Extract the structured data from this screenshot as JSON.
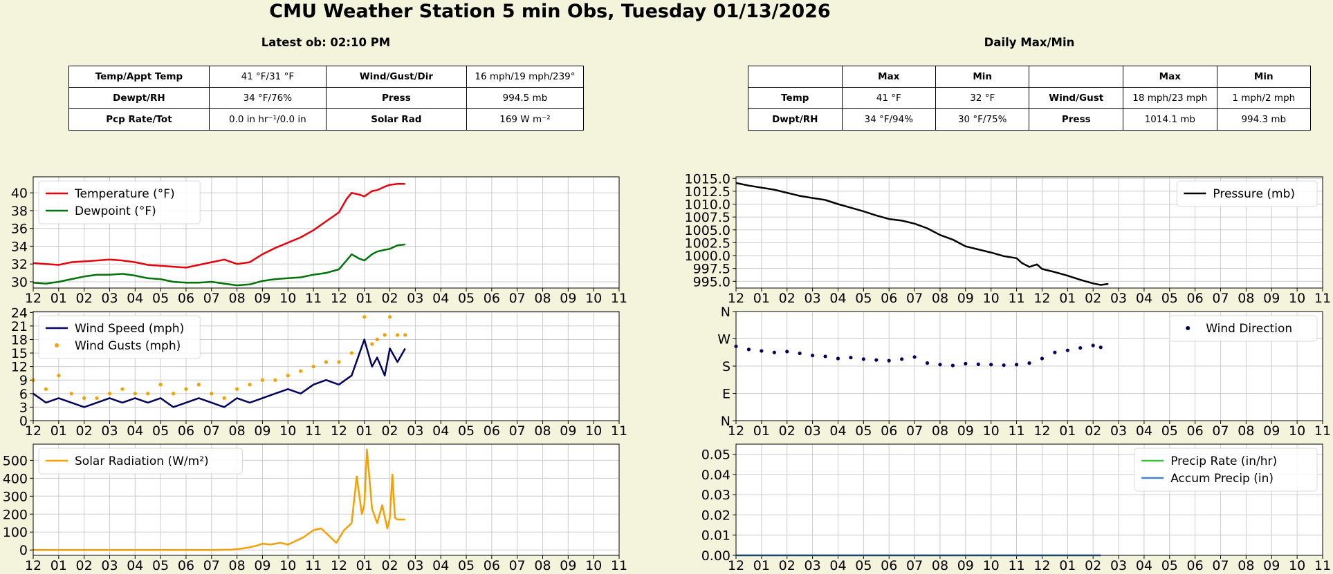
{
  "title": "CMU Weather Station 5 min Obs, Tuesday 01/13/2026",
  "latest": {
    "heading": "Latest ob: 02:10 PM",
    "rows": [
      [
        "Temp/Appt Temp",
        "41 °F/31 °F",
        "Wind/Gust/Dir",
        "16 mph/19 mph/239°"
      ],
      [
        "Dewpt/RH",
        "34 °F/76%",
        "Press",
        "994.5 mb"
      ],
      [
        "Pcp Rate/Tot",
        "0.0 in hr⁻¹/0.0 in",
        "Solar Rad",
        "169 W m⁻²"
      ]
    ]
  },
  "daily": {
    "heading": "Daily Max/Min",
    "header": [
      "",
      "Max",
      "Min",
      "",
      "Max",
      "Min"
    ],
    "rows": [
      [
        "Temp",
        "41 °F",
        "32 °F",
        "Wind/Gust",
        "18 mph/23 mph",
        "1 mph/2 mph"
      ],
      [
        "Dwpt/RH",
        "34 °F/94%",
        "30 °F/75%",
        "Press",
        "1014.1 mb",
        "994.3 mb"
      ]
    ]
  },
  "x_tick_labels": [
    "12",
    "01",
    "02",
    "03",
    "04",
    "05",
    "06",
    "07",
    "08",
    "09",
    "10",
    "11",
    "12",
    "01",
    "02",
    "03",
    "04",
    "05",
    "06",
    "07",
    "08",
    "09",
    "10",
    "11"
  ],
  "chart_data": [
    {
      "id": "temp",
      "type": "line",
      "x_unit": "hours since midnight",
      "xlim": [
        0,
        23
      ],
      "ylim": [
        29.3,
        41.8
      ],
      "yticks": [
        30,
        32,
        34,
        36,
        38,
        40
      ],
      "grid": true,
      "legend_placement": "top-left",
      "series": [
        {
          "name": "Temperature (°F)",
          "color": "#e8000b",
          "x": [
            0,
            0.5,
            1,
            1.5,
            2,
            2.5,
            3,
            3.5,
            4,
            4.5,
            5,
            5.5,
            6,
            6.5,
            7,
            7.5,
            8,
            8.5,
            9,
            9.5,
            10,
            10.5,
            11,
            11.5,
            12,
            12.3,
            12.5,
            12.8,
            13,
            13.3,
            13.5,
            13.8,
            14,
            14.3,
            14.6
          ],
          "y": [
            32.1,
            32.0,
            31.9,
            32.2,
            32.3,
            32.4,
            32.5,
            32.4,
            32.2,
            31.9,
            31.8,
            31.7,
            31.6,
            31.9,
            32.2,
            32.5,
            32.0,
            32.2,
            33.1,
            33.8,
            34.4,
            35.0,
            35.8,
            36.8,
            37.8,
            39.3,
            40.0,
            39.8,
            39.6,
            40.2,
            40.3,
            40.7,
            40.9,
            41.0,
            41.0
          ]
        },
        {
          "name": "Dewpoint (°F)",
          "color": "#00720a",
          "x": [
            0,
            0.5,
            1,
            1.5,
            2,
            2.5,
            3,
            3.5,
            4,
            4.5,
            5,
            5.5,
            6,
            6.5,
            7,
            7.5,
            8,
            8.5,
            9,
            9.5,
            10,
            10.5,
            11,
            11.5,
            12,
            12.3,
            12.5,
            12.8,
            13,
            13.3,
            13.5,
            13.8,
            14,
            14.3,
            14.6
          ],
          "y": [
            29.9,
            29.8,
            30.0,
            30.3,
            30.6,
            30.8,
            30.8,
            30.9,
            30.7,
            30.4,
            30.3,
            30.0,
            29.9,
            29.9,
            30.0,
            29.8,
            29.6,
            29.7,
            30.1,
            30.3,
            30.4,
            30.5,
            30.8,
            31.0,
            31.4,
            32.4,
            33.1,
            32.6,
            32.4,
            33.1,
            33.4,
            33.6,
            33.7,
            34.1,
            34.2
          ]
        }
      ]
    },
    {
      "id": "pressure",
      "type": "line",
      "x_unit": "hours since midnight",
      "xlim": [
        0,
        23
      ],
      "ylim": [
        993.7,
        1015.3
      ],
      "yticks": [
        "995.0",
        "997.5",
        "1000.0",
        "1002.5",
        "1005.0",
        "1007.5",
        "1010.0",
        "1012.5",
        "1015.0"
      ],
      "grid": true,
      "legend_placement": "top-right",
      "series": [
        {
          "name": "Pressure (mb)",
          "color": "#000000",
          "x": [
            0,
            0.5,
            1,
            1.5,
            2,
            2.5,
            3,
            3.5,
            4,
            4.5,
            5,
            5.5,
            6,
            6.5,
            7,
            7.5,
            8,
            8.5,
            9,
            9.5,
            10,
            10.5,
            11,
            11.2,
            11.5,
            11.8,
            12,
            12.5,
            13,
            13.5,
            14,
            14.3,
            14.6
          ],
          "y": [
            1014.1,
            1013.6,
            1013.2,
            1012.8,
            1012.2,
            1011.6,
            1011.2,
            1010.8,
            1010.0,
            1009.3,
            1008.6,
            1007.8,
            1007.1,
            1006.8,
            1006.2,
            1005.3,
            1004.0,
            1003.1,
            1001.8,
            1001.2,
            1000.6,
            999.9,
            999.5,
            998.6,
            997.8,
            998.3,
            997.4,
            996.8,
            996.1,
            995.3,
            994.6,
            994.3,
            994.5
          ]
        }
      ]
    },
    {
      "id": "wind",
      "type": "line",
      "x_unit": "hours since midnight",
      "xlim": [
        0,
        23
      ],
      "ylim": [
        0,
        24.2
      ],
      "yticks": [
        0,
        3,
        6,
        9,
        12,
        15,
        18,
        21,
        24
      ],
      "grid": true,
      "legend_placement": "top-left",
      "series": [
        {
          "name": "Wind Speed (mph)",
          "color": "#00005f",
          "x": [
            0,
            0.5,
            1,
            1.5,
            2,
            2.5,
            3,
            3.5,
            4,
            4.5,
            5,
            5.5,
            6,
            6.5,
            7,
            7.5,
            8,
            8.5,
            9,
            9.5,
            10,
            10.5,
            11,
            11.5,
            12,
            12.5,
            13,
            13.3,
            13.5,
            13.8,
            14,
            14.3,
            14.6
          ],
          "y": [
            6,
            4,
            5,
            4,
            3,
            4,
            5,
            4,
            5,
            4,
            5,
            3,
            4,
            5,
            4,
            3,
            5,
            4,
            5,
            6,
            7,
            6,
            8,
            9,
            8,
            10,
            18,
            12,
            14,
            10,
            16,
            13,
            16
          ]
        },
        {
          "name": "Wind Gusts (mph)",
          "color": "#f5a000",
          "marker": "dot",
          "x": [
            0,
            0.5,
            1,
            1.5,
            2,
            2.5,
            3,
            3.5,
            4,
            4.5,
            5,
            5.5,
            6,
            6.5,
            7,
            7.5,
            8,
            8.5,
            9,
            9.5,
            10,
            10.5,
            11,
            11.5,
            12,
            12.5,
            13,
            13.3,
            13.5,
            13.8,
            14,
            14.3,
            14.6
          ],
          "y": [
            9,
            7,
            10,
            6,
            5,
            5,
            6,
            7,
            6,
            6,
            8,
            6,
            7,
            8,
            6,
            5,
            7,
            8,
            9,
            9,
            10,
            11,
            12,
            13,
            13,
            15,
            23,
            17,
            18,
            19,
            23,
            19,
            19
          ]
        }
      ]
    },
    {
      "id": "winddir",
      "type": "scatter",
      "x_unit": "hours since midnight",
      "xlim": [
        0,
        23
      ],
      "ylim": [
        0,
        360
      ],
      "yticks": [
        0,
        90,
        180,
        270,
        360
      ],
      "ytick_labels": [
        "N",
        "E",
        "S",
        "W",
        "N"
      ],
      "grid": true,
      "legend_placement": "top-right",
      "series": [
        {
          "name": "Wind Direction",
          "color": "#00005f",
          "x": [
            0,
            0.5,
            1,
            1.5,
            2,
            2.5,
            3,
            3.5,
            4,
            4.5,
            5,
            5.5,
            6,
            6.5,
            7,
            7.5,
            8,
            8.5,
            9,
            9.5,
            10,
            10.5,
            11,
            11.5,
            12,
            12.5,
            13,
            13.5,
            14,
            14.3
          ],
          "y": [
            245,
            235,
            230,
            225,
            228,
            222,
            215,
            212,
            205,
            208,
            203,
            200,
            198,
            203,
            210,
            190,
            185,
            182,
            188,
            186,
            185,
            183,
            185,
            190,
            205,
            225,
            232,
            240,
            248,
            242
          ]
        }
      ]
    },
    {
      "id": "solar",
      "type": "line",
      "x_unit": "hours since midnight",
      "xlim": [
        0,
        23
      ],
      "ylim": [
        -30,
        590
      ],
      "yticks": [
        0,
        100,
        200,
        300,
        400,
        500
      ],
      "grid": true,
      "legend_placement": "top-left",
      "series": [
        {
          "name": "Solar Radiation (W/m²)",
          "color": "#f5a000",
          "x": [
            0,
            1,
            2,
            3,
            4,
            5,
            6,
            7,
            7.8,
            8.2,
            8.5,
            8.8,
            9,
            9.3,
            9.7,
            10,
            10.3,
            10.6,
            11,
            11.3,
            11.6,
            11.9,
            12.2,
            12.5,
            12.7,
            12.9,
            13,
            13.1,
            13.3,
            13.5,
            13.7,
            13.9,
            14,
            14.1,
            14.2,
            14.3,
            14.6
          ],
          "y": [
            0,
            0,
            0,
            0,
            0,
            0,
            0,
            0,
            2,
            8,
            15,
            25,
            35,
            30,
            40,
            30,
            50,
            70,
            110,
            120,
            80,
            40,
            110,
            150,
            410,
            200,
            250,
            560,
            230,
            150,
            250,
            120,
            180,
            420,
            180,
            170,
            170
          ]
        }
      ]
    },
    {
      "id": "precip",
      "type": "line",
      "x_unit": "hours since midnight",
      "xlim": [
        0,
        23
      ],
      "ylim": [
        0,
        0.055
      ],
      "yticks": [
        "0.00",
        "0.01",
        "0.02",
        "0.03",
        "0.04",
        "0.05"
      ],
      "grid": true,
      "legend_placement": "top-right",
      "series": [
        {
          "name": "Precip Rate (in/hr)",
          "color": "#3cbf3c",
          "x": [
            0,
            14.3
          ],
          "y": [
            0,
            0
          ]
        },
        {
          "name": "Accum Precip (in)",
          "color": "#4a7fd6",
          "x": [
            0,
            14.3
          ],
          "y": [
            0,
            0
          ]
        }
      ]
    }
  ]
}
